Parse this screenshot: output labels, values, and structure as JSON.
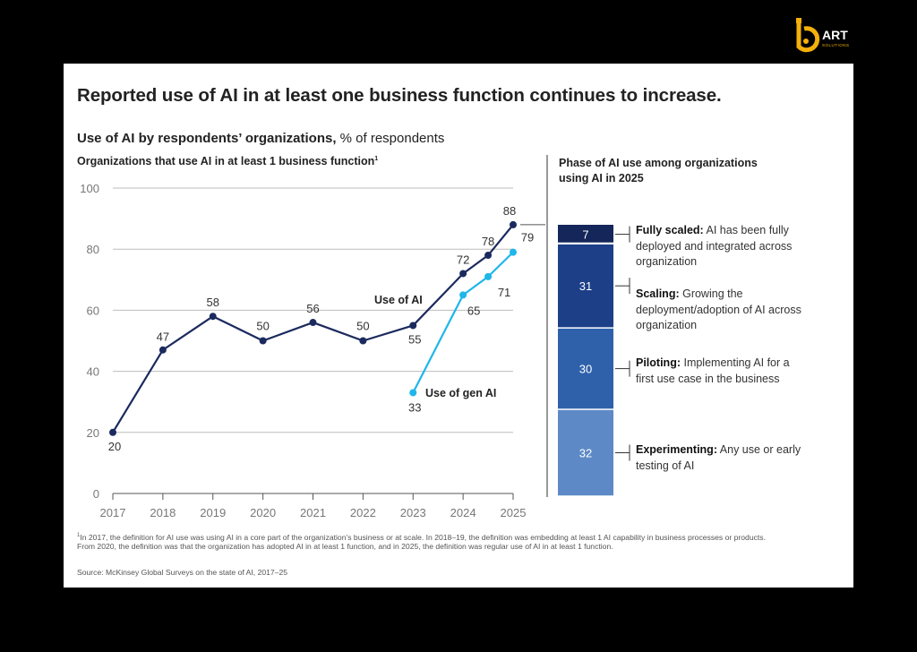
{
  "logo": {
    "text": "ART",
    "subtext": "SOLUTIONS"
  },
  "title": "Reported use of AI in at least one business function continues to increase.",
  "subtitle": {
    "bold": "Use of AI by respondents’ organizations,",
    "rest": " % of respondents"
  },
  "left_heading": "Organizations that use AI in at least 1 business function",
  "left_heading_sup": "1",
  "right_heading": "Phase of AI use among organizations using AI in 2025",
  "footnote": "In 2017, the definition for AI use was using AI in a core part of the organization’s business or at scale. In 2018–19, the definition was embedding at least 1 AI capability in business processes or products. From 2020, the definition was that the organization has adopted AI in at least 1 function, and in 2025, the definition was regular use of AI in at least 1 function.",
  "footnote_sup": "1",
  "source": "Source: McKinsey Global Surveys on the state of AI, 2017–25",
  "chart_data": [
    {
      "type": "line",
      "title": "Organizations that use AI in at least 1 business function",
      "xlabel": "",
      "ylabel": "% of respondents",
      "ylim": [
        0,
        100
      ],
      "yticks": [
        0,
        20,
        40,
        60,
        80,
        100
      ],
      "xticks": [
        "2017",
        "2018",
        "2019",
        "2020",
        "2021",
        "2022",
        "2023",
        "2024",
        "2025"
      ],
      "grid": true,
      "series": [
        {
          "name": "Use of AI",
          "color": "#1b2a5e",
          "x": [
            2017,
            2018,
            2019,
            2020,
            2021,
            2022,
            2023,
            2024,
            2024.5,
            2025
          ],
          "values": [
            20,
            47,
            58,
            50,
            56,
            50,
            55,
            72,
            78,
            88
          ],
          "labels": [
            "20",
            "47",
            "58",
            "50",
            "56",
            "50",
            "55",
            "72",
            "78",
            "88"
          ]
        },
        {
          "name": "Use of gen AI",
          "color": "#1fb6ea",
          "x": [
            2023,
            2024,
            2024.5,
            2025
          ],
          "values": [
            33,
            65,
            71,
            79
          ],
          "labels": [
            "33",
            "65",
            "71",
            "79"
          ]
        }
      ]
    },
    {
      "type": "bar",
      "stacked": true,
      "title": "Phase of AI use among organizations using AI in 2025",
      "categories": [
        "Experimenting",
        "Piloting",
        "Scaling",
        "Fully scaled"
      ],
      "values": [
        32,
        30,
        31,
        7
      ],
      "colors": [
        "#5d8ac7",
        "#2f61ab",
        "#1c3f88",
        "#14265a"
      ],
      "descriptions": [
        "Any use or early testing of AI",
        "Implementing AI for a first use case in the business",
        "Growing the deployment/adoption of AI across organization",
        "AI has been fully deployed and integrated across organization"
      ]
    }
  ]
}
